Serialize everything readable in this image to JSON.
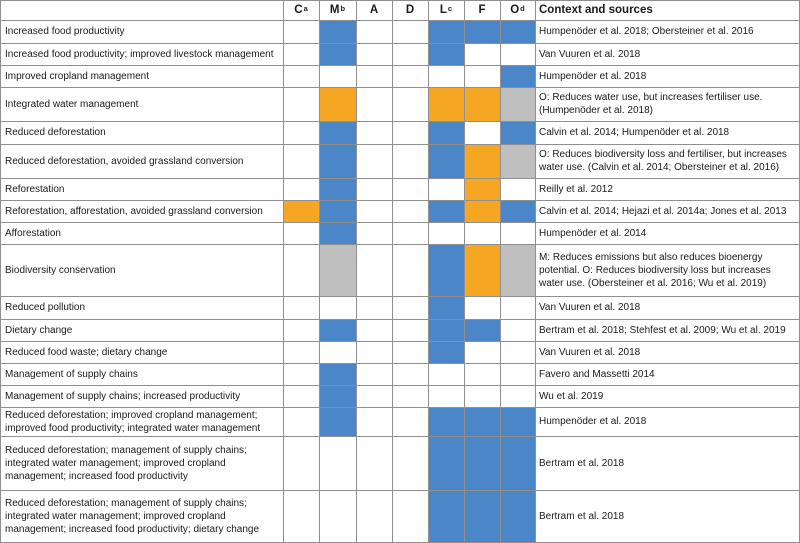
{
  "colors": {
    "blue": "#4a86c8",
    "orange": "#f5a623",
    "gray": "#bfbfbf"
  },
  "columns": [
    {
      "key": "C",
      "label": "C",
      "sup": "a"
    },
    {
      "key": "M",
      "label": "M",
      "sup": "b"
    },
    {
      "key": "A",
      "label": "A",
      "sup": ""
    },
    {
      "key": "D",
      "label": "D",
      "sup": ""
    },
    {
      "key": "L",
      "label": "L",
      "sup": "c"
    },
    {
      "key": "F",
      "label": "F",
      "sup": ""
    },
    {
      "key": "O",
      "label": "O",
      "sup": "d"
    }
  ],
  "context_header": "Context and sources",
  "rows": [
    {
      "label": "Increased food productivity",
      "cells": [
        "",
        "blue",
        "",
        "",
        "blue",
        "blue",
        "blue"
      ],
      "sources": "Humpenöder et al. 2018; Obersteiner et al. 2016"
    },
    {
      "label": "Increased food productivity; improved livestock management",
      "cells": [
        "",
        "blue",
        "",
        "",
        "blue",
        "",
        ""
      ],
      "sources": "Van Vuuren et al. 2018"
    },
    {
      "label": "Improved cropland management",
      "cells": [
        "",
        "",
        "",
        "",
        "",
        "",
        "blue"
      ],
      "sources": "Humpenöder et al. 2018"
    },
    {
      "label": "Integrated water management",
      "cells": [
        "",
        "orange",
        "",
        "",
        "orange",
        "orange",
        "gray"
      ],
      "sources": "O: Reduces water use, but increases fertiliser use. (Humpenöder et al. 2018)"
    },
    {
      "label": "Reduced deforestation",
      "cells": [
        "",
        "blue",
        "",
        "",
        "blue",
        "",
        "blue"
      ],
      "sources": "Calvin et al. 2014; Humpenöder et al. 2018"
    },
    {
      "label": "Reduced deforestation, avoided grassland conversion",
      "cells": [
        "",
        "blue",
        "",
        "",
        "blue",
        "orange",
        "gray"
      ],
      "sources": "O: Reduces biodiversity loss and fertiliser, but increases water use. (Calvin et al. 2014; Obersteiner et al. 2016)"
    },
    {
      "label": "Reforestation",
      "cells": [
        "",
        "blue",
        "",
        "",
        "",
        "orange",
        ""
      ],
      "sources": "Reilly et al. 2012"
    },
    {
      "label": "Reforestation, afforestation, avoided grassland conversion",
      "cells": [
        "orange",
        "blue",
        "",
        "",
        "blue",
        "orange",
        "blue"
      ],
      "sources": "Calvin et al. 2014; Hejazi et al. 2014a; Jones et al. 2013"
    },
    {
      "label": "Afforestation",
      "cells": [
        "",
        "blue",
        "",
        "",
        "",
        "",
        ""
      ],
      "sources": "Humpenöder et al. 2014"
    },
    {
      "label": "Biodiversity conservation",
      "cells": [
        "",
        "gray",
        "",
        "",
        "blue",
        "orange",
        "gray"
      ],
      "sources": "M: Reduces emissions but also reduces bioenergy potential. O: Reduces biodiversity loss but increases water use. (Obersteiner et al. 2016; Wu et al. 2019)"
    },
    {
      "label": "Reduced pollution",
      "cells": [
        "",
        "",
        "",
        "",
        "blue",
        "",
        ""
      ],
      "sources": "Van Vuuren et al. 2018"
    },
    {
      "label": "Dietary change",
      "cells": [
        "",
        "blue",
        "",
        "",
        "blue",
        "blue",
        ""
      ],
      "sources": "Bertram et al. 2018; Stehfest et al. 2009; Wu et al. 2019"
    },
    {
      "label": "Reduced food waste; dietary change",
      "cells": [
        "",
        "",
        "",
        "",
        "blue",
        "",
        ""
      ],
      "sources": "Van Vuuren et al. 2018"
    },
    {
      "label": "Management of supply chains",
      "cells": [
        "",
        "blue",
        "",
        "",
        "",
        "",
        ""
      ],
      "sources": "Favero and Massetti 2014"
    },
    {
      "label": "Management of supply chains; increased productivity",
      "cells": [
        "",
        "blue",
        "",
        "",
        "",
        "",
        ""
      ],
      "sources": "Wu et al. 2019"
    },
    {
      "label": "Reduced deforestation; improved cropland management; improved food productivity; integrated water management",
      "cells": [
        "",
        "blue",
        "",
        "",
        "blue",
        "blue",
        "blue"
      ],
      "sources": "Humpenöder et al. 2018"
    },
    {
      "label": "Reduced deforestation; management of supply chains; integrated water management; improved cropland management; increased food productivity",
      "cells": [
        "",
        "",
        "",
        "",
        "blue",
        "blue",
        "blue"
      ],
      "sources": "Bertram et al. 2018"
    },
    {
      "label": "Reduced deforestation; management of supply chains; integrated water management; improved cropland management; increased food productivity; dietary change",
      "cells": [
        "",
        "",
        "",
        "",
        "blue",
        "blue",
        "blue"
      ],
      "sources": "Bertram et al. 2018"
    }
  ]
}
